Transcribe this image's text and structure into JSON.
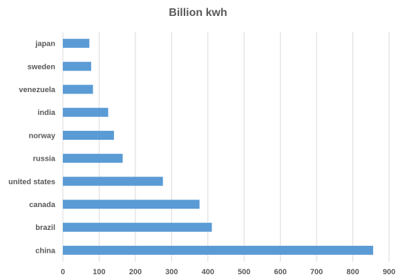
{
  "chart_data": {
    "type": "bar",
    "orientation": "horizontal",
    "title": "Billion kwh",
    "categories": [
      "japan",
      "sweden",
      "venezuela",
      "india",
      "norway",
      "russia",
      "united states",
      "canada",
      "brazil",
      "china"
    ],
    "values": [
      73,
      78,
      83,
      125,
      141,
      165,
      276,
      377,
      411,
      856
    ],
    "xlim": [
      0,
      900
    ],
    "xticks": [
      0,
      100,
      200,
      300,
      400,
      500,
      600,
      700,
      800,
      900
    ],
    "xlabel": "",
    "ylabel": "",
    "grid": true,
    "bar_color": "#5b9bd5",
    "grid_color": "#d9d9d9"
  }
}
